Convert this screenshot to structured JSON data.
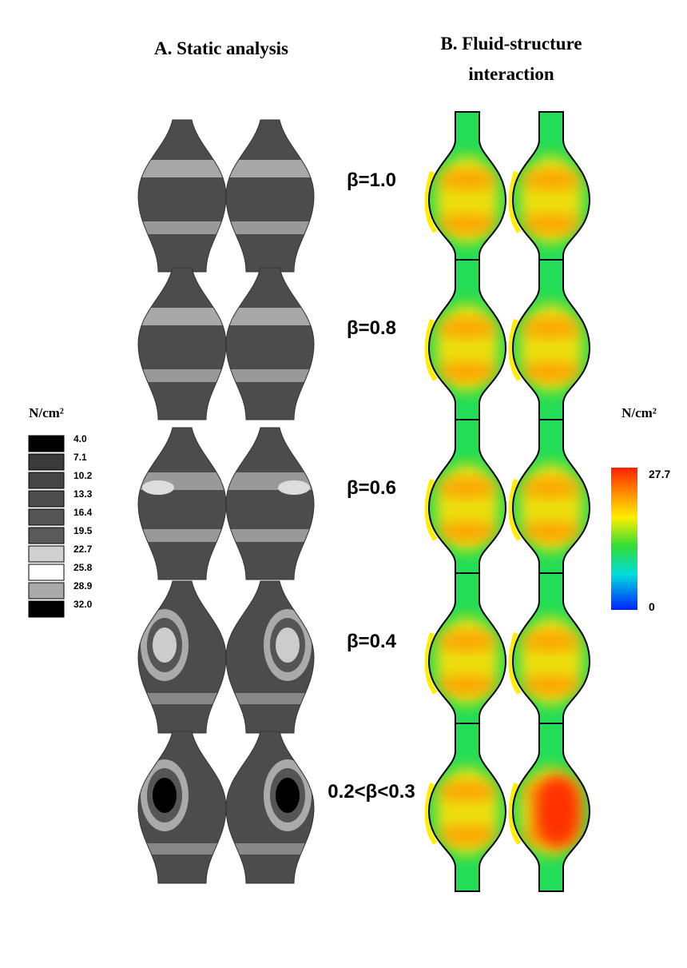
{
  "column_titles": {
    "static": "A. Static analysis",
    "fsi": [
      "B. Fluid-structure",
      "interaction"
    ]
  },
  "rows": [
    {
      "label": "β=1.0"
    },
    {
      "label": "β=0.8"
    },
    {
      "label": "β=0.6"
    },
    {
      "label": "β=0.4"
    },
    {
      "label": "0.2<β<0.3"
    }
  ],
  "static_legend": {
    "title": "N/cm²",
    "labels": [
      "4.0",
      "7.1",
      "10.2",
      "13.3",
      "16.4",
      "19.5",
      "22.7",
      "25.8",
      "28.9",
      "32.0"
    ]
  },
  "fsi_legend": {
    "title": "N/cm²",
    "max_label": "27.7",
    "min_label": "0"
  }
}
